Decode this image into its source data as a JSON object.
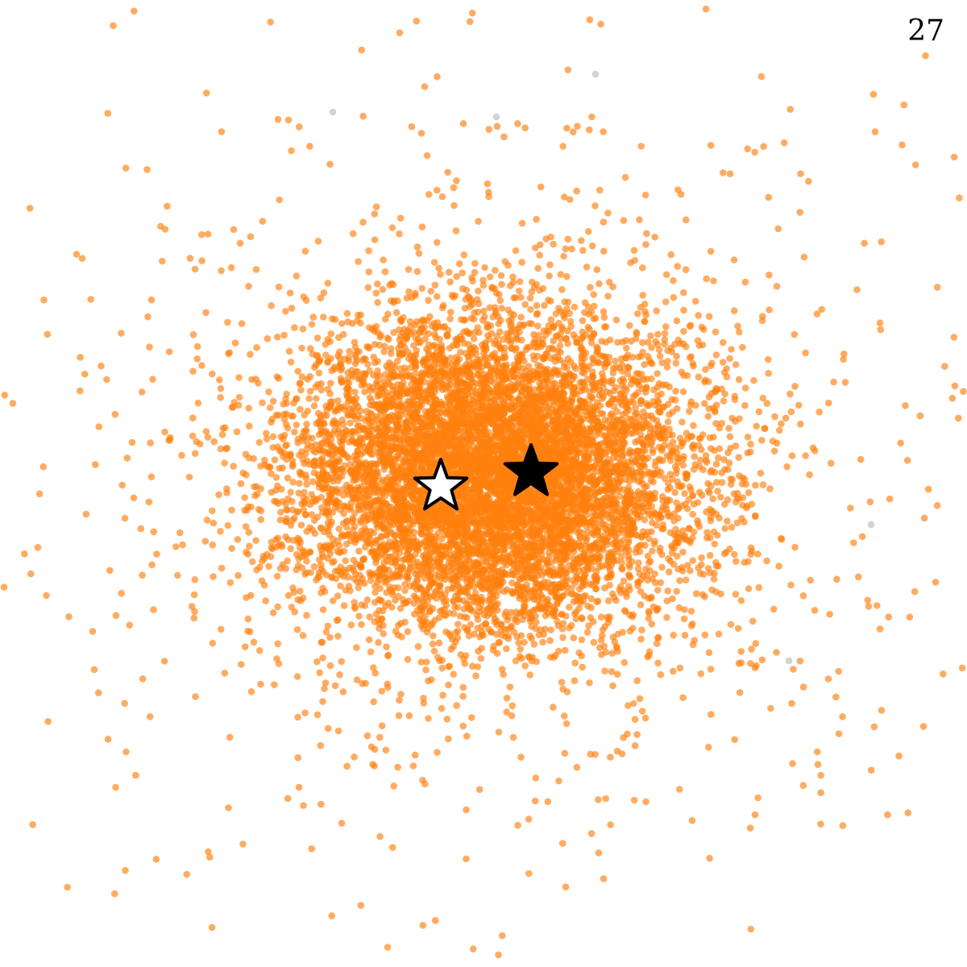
{
  "panel_label": "27",
  "colors": {
    "cluster": "#ff7f0e",
    "outlier": "#d3d3d3",
    "star_filled": "#000000",
    "star_hollow_fill": "#ffffff",
    "star_stroke": "#000000"
  },
  "chart_data": {
    "type": "scatter",
    "title": "",
    "xlabel": "",
    "ylabel": "",
    "axes_visible": false,
    "grid": false,
    "xlim": [
      -6,
      6
    ],
    "ylim": [
      -6,
      6
    ],
    "series": [
      {
        "role": "cluster",
        "color": "#ff7f0e",
        "opacity": 0.65,
        "distribution": "gaussian-core-plus-halo",
        "count": 9000,
        "center": [
          0.1,
          0.1
        ],
        "core_sigma": [
          1.25,
          0.95
        ],
        "halo_count": 1000,
        "halo_sigma": [
          3.0,
          2.5
        ]
      },
      {
        "role": "outliers",
        "color": "#d3d3d3",
        "points": [
          [
            -1.87,
            4.61
          ],
          [
            0.16,
            4.55
          ],
          [
            1.39,
            5.08
          ],
          [
            4.81,
            -0.51
          ],
          [
            3.79,
            -2.2
          ]
        ]
      }
    ],
    "markers": [
      {
        "type": "star",
        "filled": false,
        "x": -0.53,
        "y": -0.04
      },
      {
        "type": "star",
        "filled": true,
        "x": 0.59,
        "y": 0.14
      }
    ]
  }
}
